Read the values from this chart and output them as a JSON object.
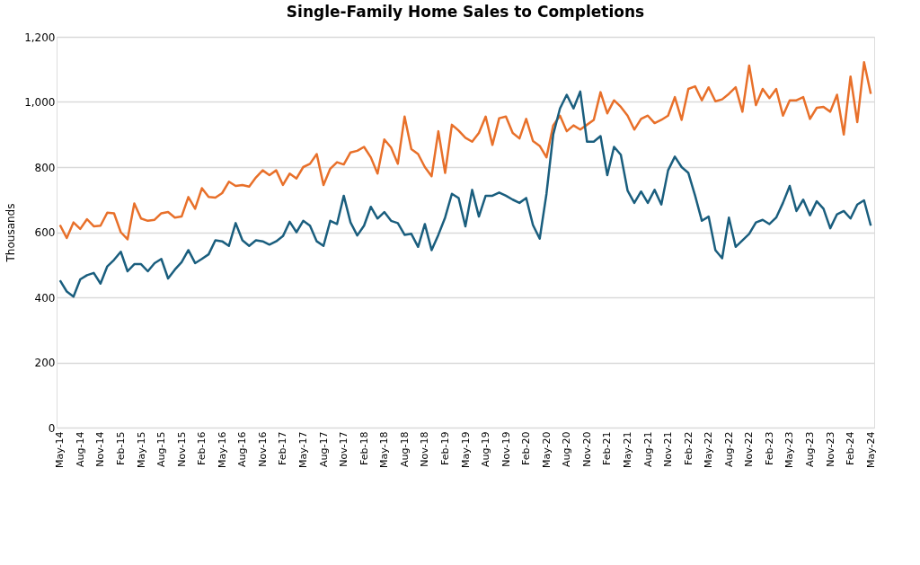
{
  "chart_data": {
    "type": "line",
    "title": "Single-Family Home Sales to Completions",
    "ylabel": "Thousands",
    "categories": [
      "May-14",
      null,
      null,
      "Aug-14",
      null,
      null,
      "Nov-14",
      null,
      null,
      "Feb-15",
      null,
      null,
      "May-15",
      null,
      null,
      "Aug-15",
      null,
      null,
      "Nov-15",
      null,
      null,
      "Feb-16",
      null,
      null,
      "May-16",
      null,
      null,
      "Aug-16",
      null,
      null,
      "Nov-16",
      null,
      null,
      "Feb-17",
      null,
      null,
      "May-17",
      null,
      null,
      "Aug-17",
      null,
      null,
      "Nov-17",
      null,
      null,
      "Feb-18",
      null,
      null,
      "May-18",
      null,
      null,
      "Aug-18",
      null,
      null,
      "Nov-18",
      null,
      null,
      "Feb-19",
      null,
      null,
      "May-19",
      null,
      null,
      "Aug-19",
      null,
      null,
      "Nov-19",
      null,
      null,
      "Feb-20",
      null,
      null,
      "May-20",
      null,
      null,
      "Aug-20",
      null,
      null,
      "Nov-20",
      null,
      null,
      "Feb-21",
      null,
      null,
      "May-21",
      null,
      null,
      "Aug-21",
      null,
      null,
      "Nov-21",
      null,
      null,
      "Feb-22",
      null,
      null,
      "May-22",
      null,
      null,
      "Aug-22",
      null,
      null,
      "Nov-22",
      null,
      null,
      "Feb-23",
      null,
      null,
      "May-23",
      null,
      null,
      "Aug-23",
      null,
      null,
      "Nov-23",
      null,
      null,
      "Feb-24",
      null,
      null,
      "May-24"
    ],
    "series": [
      {
        "color": "#e8702a",
        "values": [
          622,
          582,
          630,
          610,
          640,
          618,
          620,
          660,
          658,
          600,
          578,
          688,
          642,
          635,
          638,
          658,
          662,
          645,
          648,
          708,
          672,
          735,
          708,
          706,
          720,
          755,
          742,
          745,
          740,
          768,
          790,
          775,
          790,
          745,
          780,
          765,
          800,
          810,
          840,
          745,
          795,
          815,
          808,
          845,
          850,
          862,
          830,
          780,
          885,
          860,
          810,
          955,
          855,
          840,
          800,
          772,
          910,
          782,
          930,
          912,
          890,
          878,
          905,
          955,
          868,
          950,
          955,
          905,
          888,
          948,
          880,
          865,
          830,
          928,
          958,
          910,
          928,
          915,
          930,
          945,
          1030,
          965,
          1005,
          985,
          958,
          915,
          948,
          958,
          935,
          945,
          958,
          1015,
          945,
          1040,
          1048,
          1005,
          1045,
          1002,
          1008,
          1025,
          1045,
          970,
          1112,
          990,
          1040,
          1012,
          1040,
          958,
          1005,
          1005,
          1015,
          948,
          982,
          985,
          970,
          1022,
          900,
          1078,
          938,
          1122,
          1025
        ]
      },
      {
        "color": "#1a5e7e",
        "values": [
          452,
          418,
          402,
          455,
          468,
          475,
          442,
          495,
          515,
          540,
          480,
          502,
          502,
          480,
          505,
          518,
          458,
          485,
          508,
          545,
          505,
          518,
          532,
          575,
          572,
          558,
          628,
          575,
          558,
          575,
          572,
          562,
          572,
          588,
          632,
          600,
          635,
          620,
          572,
          558,
          635,
          625,
          712,
          630,
          590,
          620,
          678,
          642,
          662,
          635,
          628,
          592,
          595,
          555,
          625,
          545,
          592,
          645,
          718,
          705,
          618,
          730,
          648,
          712,
          712,
          722,
          712,
          700,
          690,
          705,
          622,
          580,
          718,
          900,
          980,
          1022,
          980,
          1032,
          878,
          878,
          895,
          775,
          862,
          838,
          728,
          690,
          725,
          690,
          730,
          685,
          790,
          832,
          800,
          782,
          712,
          635,
          648,
          545,
          520,
          645,
          555,
          575,
          595,
          630,
          638,
          625,
          645,
          690,
          742,
          665,
          700,
          652,
          695,
          672,
          612,
          655,
          665,
          642,
          685,
          698,
          620
        ]
      }
    ],
    "ylim": [
      0,
      1200
    ],
    "yticks": [
      0,
      200,
      400,
      600,
      800,
      {
        "value": 1000,
        "label": "1,000"
      },
      {
        "value": 1200,
        "label": "1,200"
      }
    ],
    "grid": "y",
    "legend": false,
    "line_style": "solid",
    "marker": "none"
  }
}
